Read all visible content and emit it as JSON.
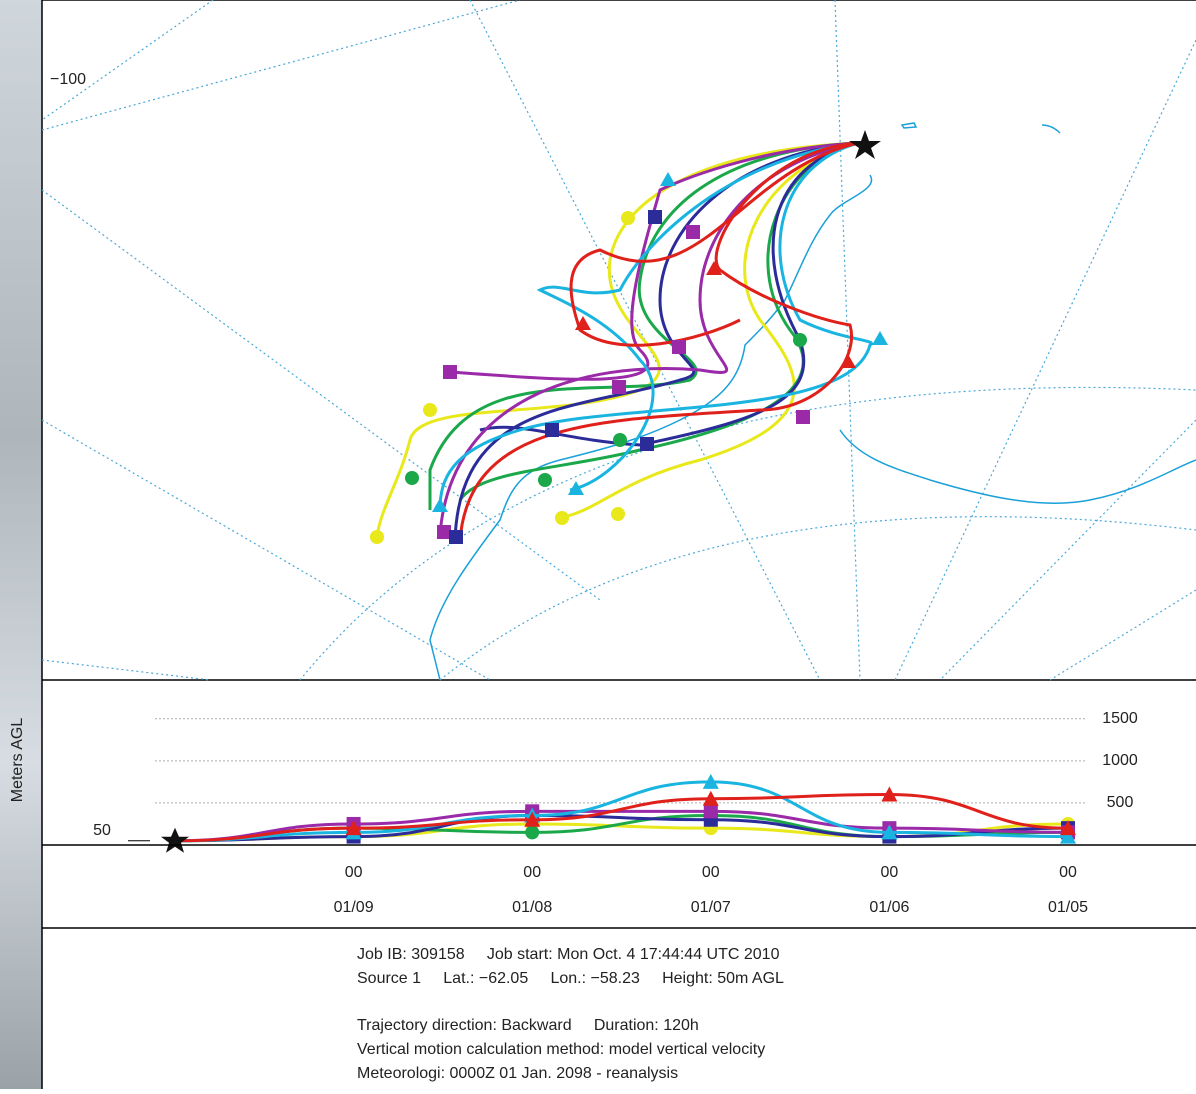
{
  "map": {
    "grid_label": "−100"
  },
  "chart_data": {
    "type": "line",
    "ylabel": "Meters AGL",
    "categories": [
      null,
      "00",
      "00",
      "00",
      "00",
      "00"
    ],
    "dates": [
      null,
      "01/09",
      "01/08",
      "01/07",
      "01/06",
      "01/05"
    ],
    "ylim": [
      0,
      1960
    ],
    "yticks": [
      500,
      1000,
      1500
    ],
    "start_height": 50,
    "grid": true,
    "series": [
      {
        "color": "#e8e81a",
        "marker": "circle",
        "values": [
          50,
          100,
          250,
          200,
          100,
          250
        ]
      },
      {
        "color": "#1aa84a",
        "marker": "circle",
        "values": [
          50,
          200,
          150,
          350,
          100,
          150
        ]
      },
      {
        "color": "#2b2b9a",
        "marker": "square",
        "values": [
          50,
          100,
          350,
          300,
          100,
          200
        ]
      },
      {
        "color": "#9a2aa8",
        "marker": "square",
        "values": [
          50,
          250,
          400,
          400,
          200,
          150
        ]
      },
      {
        "color": "#1ab4e0",
        "marker": "triangle",
        "values": [
          50,
          150,
          350,
          750,
          150,
          100
        ]
      },
      {
        "color": "#e0201a",
        "marker": "triangle",
        "values": [
          50,
          200,
          300,
          550,
          600,
          200
        ]
      }
    ]
  },
  "footer": {
    "lines": [
      "Job IB: 309158     Job start: Mon Oct. 4 17:44:44 UTC 2010",
      "Source 1     Lat.: −62.05     Lon.: −58.23     Height: 50m AGL",
      "Trajectory direction: Backward     Duration: 120h",
      "Vertical motion calculation method: model vertical velocity",
      "Meteorologi: 0000Z 01 Jan. 2098 - reanalysis"
    ]
  }
}
